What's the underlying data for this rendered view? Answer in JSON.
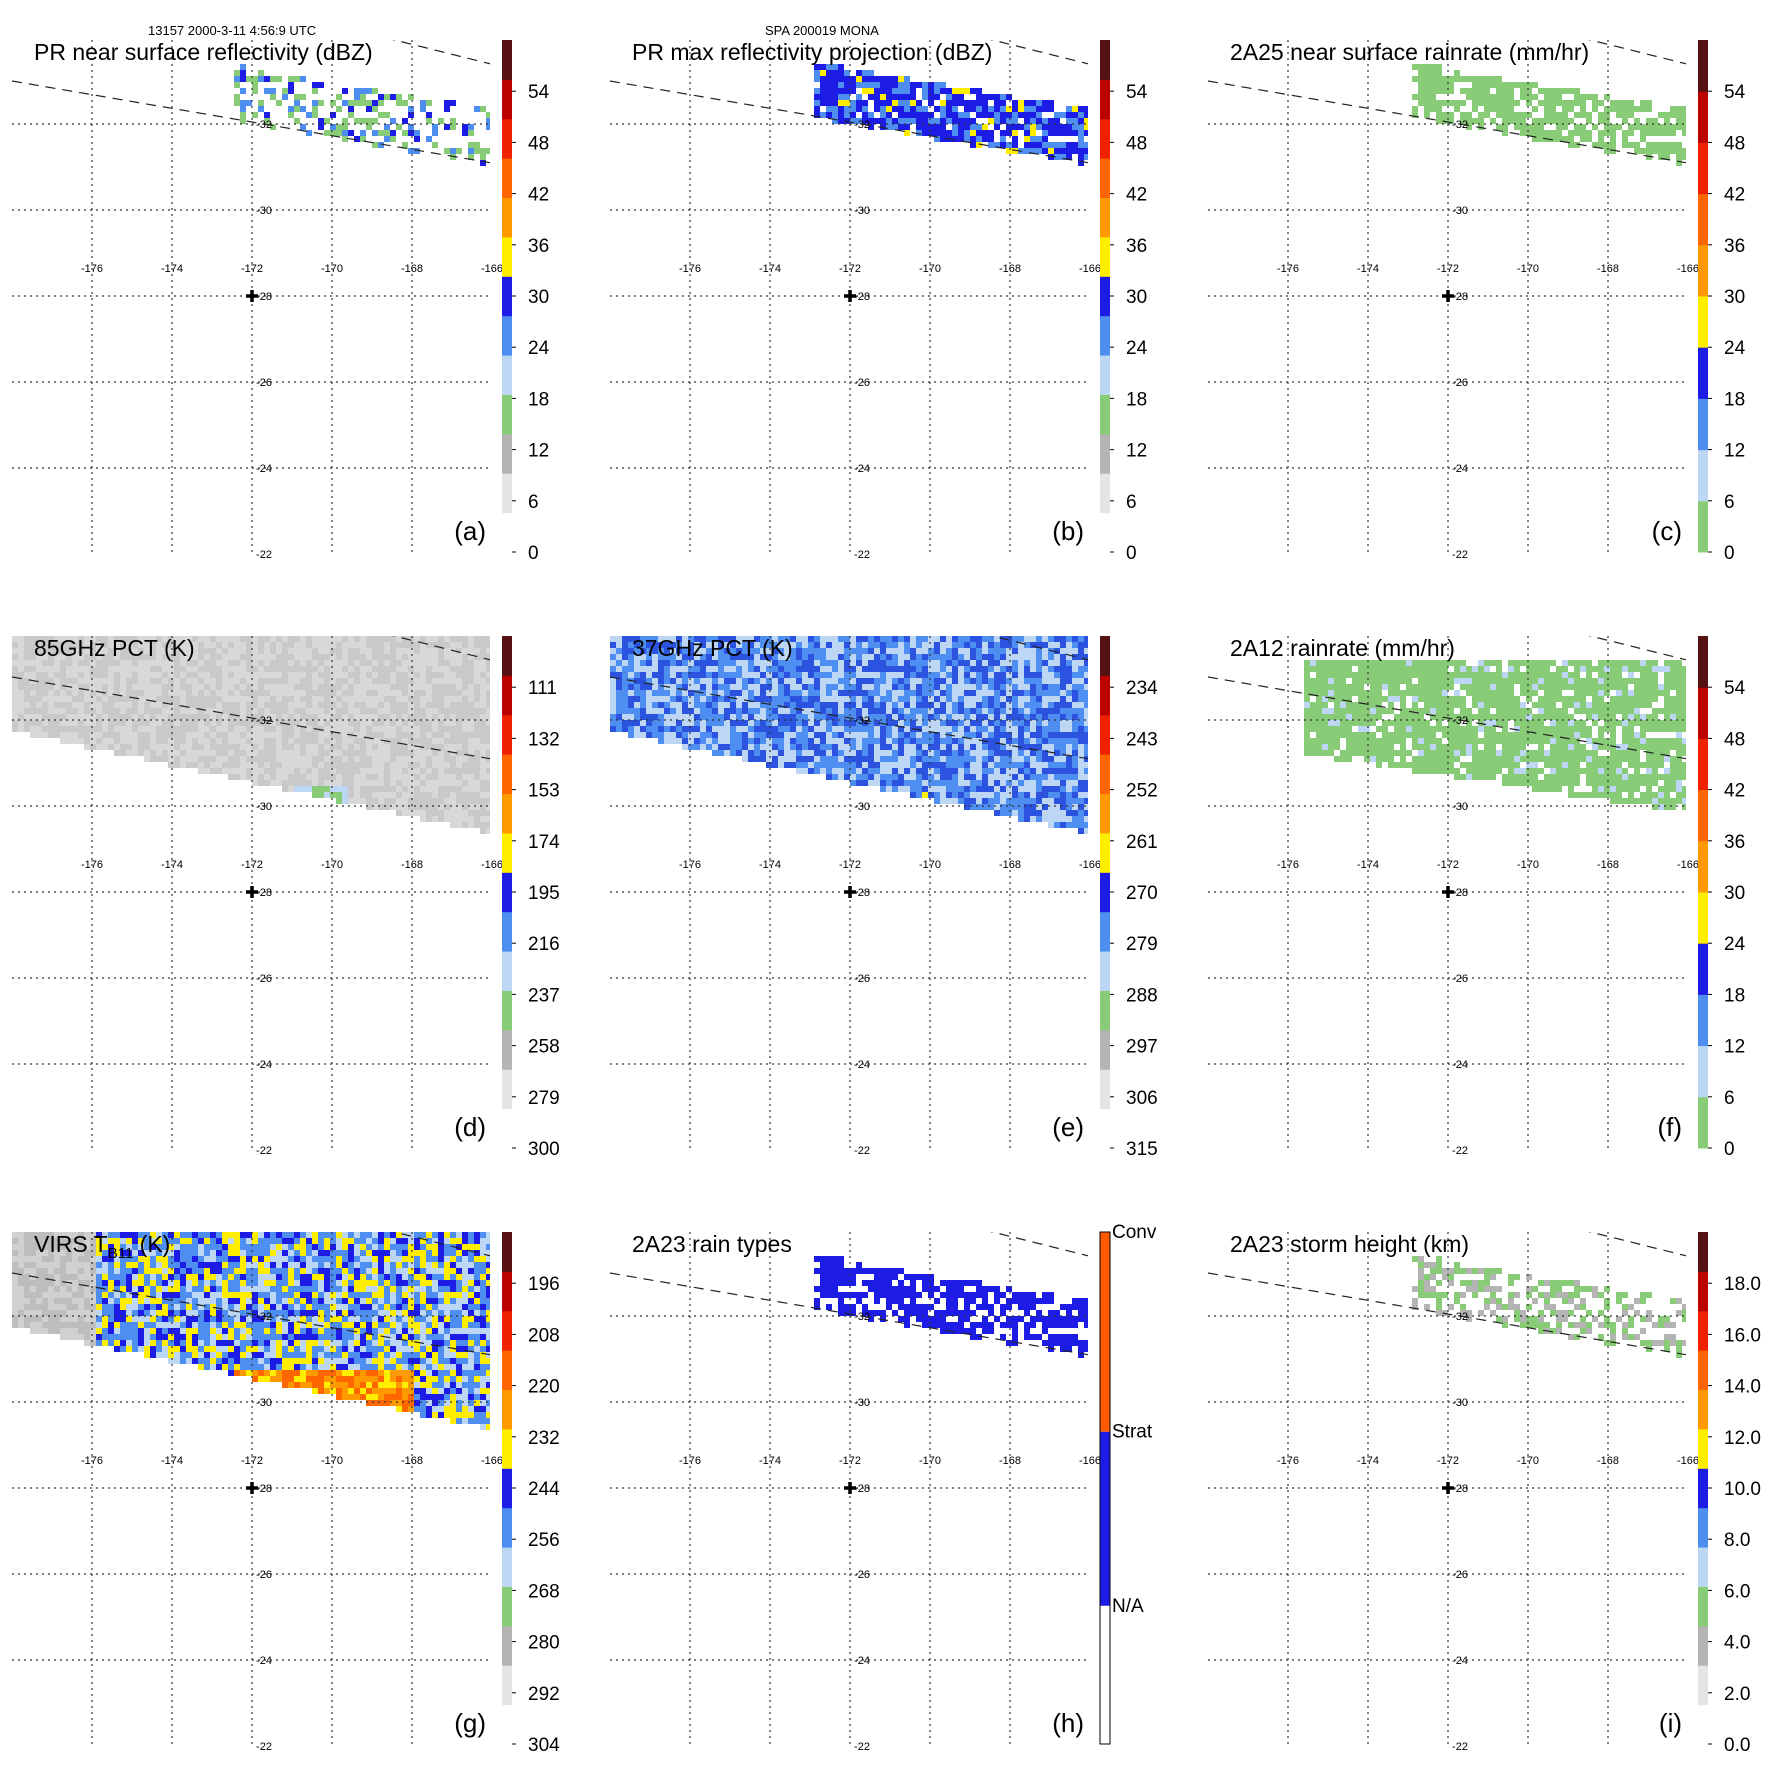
{
  "header": {
    "orbit_info": "13157 2000-3-11 4:56:9 UTC",
    "storm_info": "SPA 200019 MONA"
  },
  "grid_labels": {
    "lon": [
      "-176",
      "-174",
      "-172",
      "-170",
      "-168",
      "-166"
    ],
    "lat": [
      "-22",
      "-24",
      "-26",
      "-28",
      "-30",
      "-32"
    ]
  },
  "chart_data": [
    {
      "type": "heatmap",
      "panel": "(a)",
      "title": "PR near surface reflectivity (dBZ)",
      "colorbar": {
        "ticks": [
          "0",
          "6",
          "12",
          "18",
          "24",
          "30",
          "36",
          "42",
          "48",
          "54"
        ],
        "colors": [
          "#ffffff",
          "#e4e4e4",
          "#b4b4b4",
          "#88cc77",
          "#bcd6f4",
          "#4d8ef0",
          "#1c1ce6",
          "#ffee00",
          "#ff9900",
          "#ff6600",
          "#ee2200",
          "#bb0000",
          "#551111"
        ]
      },
      "swath": {
        "lon_range": [
          -172,
          -166
        ],
        "lat_range": [
          -33.2,
          -31.6
        ]
      }
    },
    {
      "type": "heatmap",
      "panel": "(b)",
      "title": "PR max reflectivity projection (dBZ)",
      "colorbar": {
        "ticks": [
          "0",
          "6",
          "12",
          "18",
          "24",
          "30",
          "36",
          "42",
          "48",
          "54"
        ],
        "colors": [
          "#ffffff",
          "#e4e4e4",
          "#b4b4b4",
          "#88cc77",
          "#bcd6f4",
          "#4d8ef0",
          "#1c1ce6",
          "#ffee00",
          "#ff9900",
          "#ff6600",
          "#ee2200",
          "#bb0000",
          "#551111"
        ]
      },
      "swath": {
        "lon_range": [
          -172.5,
          -166
        ],
        "lat_range": [
          -33.2,
          -31.6
        ]
      }
    },
    {
      "type": "heatmap",
      "panel": "(c)",
      "title": "2A25 near surface rainrate (mm/hr)",
      "colorbar": {
        "ticks": [
          "0",
          "6",
          "12",
          "18",
          "24",
          "30",
          "36",
          "42",
          "48",
          "54"
        ],
        "colors": [
          "#88cc77",
          "#bcd6f4",
          "#4d8ef0",
          "#1c1ce6",
          "#ffee00",
          "#ff9900",
          "#ff6600",
          "#ee2200",
          "#bb0000",
          "#551111"
        ]
      },
      "swath": {
        "lon_range": [
          -172.5,
          -166
        ],
        "lat_range": [
          -33.2,
          -31.6
        ]
      }
    },
    {
      "type": "heatmap",
      "panel": "(d)",
      "title": "85GHz PCT (K)",
      "colorbar": {
        "ticks": [
          "300",
          "279",
          "258",
          "237",
          "216",
          "195",
          "174",
          "153",
          "132",
          "111"
        ],
        "colors": [
          "#ffffff",
          "#e4e4e4",
          "#b4b4b4",
          "#88cc77",
          "#bcd6f4",
          "#4d8ef0",
          "#1c1ce6",
          "#ffee00",
          "#ff9900",
          "#ff6600",
          "#ee2200",
          "#bb0000",
          "#551111"
        ]
      },
      "swath": {
        "lon_range": [
          -178,
          -166
        ],
        "lat_range": [
          -34,
          -29.5
        ]
      }
    },
    {
      "type": "heatmap",
      "panel": "(e)",
      "title": "37GHz PCT (K)",
      "colorbar": {
        "ticks": [
          "315",
          "306",
          "297",
          "288",
          "279",
          "270",
          "261",
          "252",
          "243",
          "234"
        ],
        "colors": [
          "#ffffff",
          "#e4e4e4",
          "#b4b4b4",
          "#88cc77",
          "#bcd6f4",
          "#4d8ef0",
          "#1c1ce6",
          "#ffee00",
          "#ff9900",
          "#ff6600",
          "#ee2200",
          "#bb0000",
          "#551111"
        ]
      },
      "swath": {
        "lon_range": [
          -178,
          -166
        ],
        "lat_range": [
          -34,
          -29.5
        ]
      }
    },
    {
      "type": "heatmap",
      "panel": "(f)",
      "title": "2A12 rainrate (mm/hr)",
      "colorbar": {
        "ticks": [
          "0",
          "6",
          "12",
          "18",
          "24",
          "30",
          "36",
          "42",
          "48",
          "54"
        ],
        "colors": [
          "#88cc77",
          "#bcd6f4",
          "#4d8ef0",
          "#1c1ce6",
          "#ffee00",
          "#ff9900",
          "#ff6600",
          "#ee2200",
          "#bb0000",
          "#551111"
        ]
      },
      "swath": {
        "lon_range": [
          -176,
          -166
        ],
        "lat_range": [
          -33.5,
          -29.5
        ]
      }
    },
    {
      "type": "heatmap",
      "panel": "(g)",
      "title": "VIRS T",
      "title_sub": "B11",
      "title_suffix": " (K)",
      "colorbar": {
        "ticks": [
          "304",
          "292",
          "280",
          "268",
          "256",
          "244",
          "232",
          "220",
          "208",
          "196"
        ],
        "colors": [
          "#ffffff",
          "#e4e4e4",
          "#b4b4b4",
          "#88cc77",
          "#bcd6f4",
          "#4d8ef0",
          "#1c1ce6",
          "#ffee00",
          "#ff9900",
          "#ff6600",
          "#ee2200",
          "#bb0000",
          "#551111"
        ]
      },
      "swath": {
        "lon_range": [
          -178,
          -166
        ],
        "lat_range": [
          -34,
          -29.5
        ]
      }
    },
    {
      "type": "heatmap",
      "panel": "(h)",
      "title": "2A23 rain types",
      "colorbar": {
        "categories": [
          "N/A",
          "Strat",
          "Conv"
        ],
        "colors": [
          "#ffffff",
          "#1c1ce6",
          "#ff5a00"
        ]
      },
      "swath": {
        "lon_range": [
          -172.5,
          -166
        ],
        "lat_range": [
          -33.2,
          -31.6
        ]
      }
    },
    {
      "type": "heatmap",
      "panel": "(i)",
      "title": "2A23 storm height (km)",
      "colorbar": {
        "ticks": [
          "0.0",
          "2.0",
          "4.0",
          "6.0",
          "8.0",
          "10.0",
          "12.0",
          "14.0",
          "16.0",
          "18.0"
        ],
        "colors": [
          "#ffffff",
          "#e4e4e4",
          "#b4b4b4",
          "#88cc77",
          "#bcd6f4",
          "#4d8ef0",
          "#1c1ce6",
          "#ffee00",
          "#ff9900",
          "#ff6600",
          "#ee2200",
          "#bb0000",
          "#551111"
        ]
      },
      "swath": {
        "lon_range": [
          -172.5,
          -166
        ],
        "lat_range": [
          -33.2,
          -31.6
        ]
      }
    }
  ]
}
